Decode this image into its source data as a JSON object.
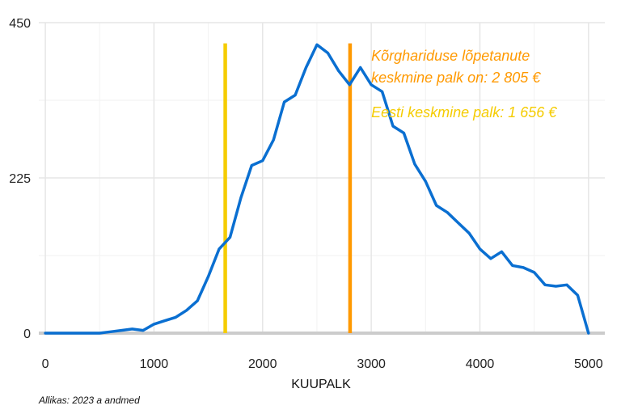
{
  "chart_data": {
    "type": "line",
    "xlabel": "KUUPALK",
    "ylabel": "",
    "xlim": [
      -60,
      5150
    ],
    "ylim": [
      0,
      450
    ],
    "x_ticks": [
      0,
      1000,
      2000,
      3000,
      4000,
      5000
    ],
    "x_tick_labels": [
      "0",
      "1000",
      "2000",
      "3000",
      "4000",
      "5000"
    ],
    "y_ticks": [
      0,
      225,
      450
    ],
    "y_tick_labels": [
      "0",
      "225",
      "450"
    ],
    "grid": true,
    "series": [
      {
        "color": "#0a6fd1",
        "x": [
          0,
          100,
          200,
          300,
          400,
          500,
          600,
          700,
          800,
          900,
          1000,
          1100,
          1200,
          1300,
          1400,
          1500,
          1600,
          1700,
          1800,
          1900,
          2000,
          2100,
          2200,
          2300,
          2400,
          2500,
          2600,
          2700,
          2800,
          2900,
          3000,
          3100,
          3200,
          3300,
          3400,
          3500,
          3600,
          3700,
          3800,
          3900,
          4000,
          4100,
          4200,
          4300,
          4400,
          4500,
          4600,
          4700,
          4800,
          4900,
          5000
        ],
        "y": [
          0,
          0,
          0,
          0,
          0,
          0,
          2,
          4,
          6,
          4,
          13,
          18,
          23,
          33,
          47,
          82,
          122,
          139,
          196,
          243,
          250,
          280,
          335,
          345,
          385,
          418,
          406,
          380,
          360,
          385,
          360,
          350,
          300,
          290,
          245,
          220,
          185,
          175,
          160,
          145,
          122,
          108,
          118,
          98,
          95,
          88,
          70,
          68,
          70,
          55,
          0
        ]
      }
    ],
    "reference_lines": [
      {
        "x": 1656,
        "y_top": 420,
        "color": "#f5cc00"
      },
      {
        "x": 2805,
        "y_top": 420,
        "color": "#ff9900"
      }
    ],
    "annotations": [
      {
        "text": "Kõrghariduse lõpetanute",
        "x": 3000,
        "y": 395,
        "color": "#ff9900"
      },
      {
        "text": " keskmine palk on: 2 805 €",
        "x": 3000,
        "y": 363,
        "color": "#ff9900"
      },
      {
        "text": "Eesti keskmine palk: 1 656 €",
        "x": 3000,
        "y": 313,
        "color": "#f5cc00"
      }
    ]
  },
  "footer": {
    "source": "Allikas: 2023 a andmed"
  }
}
